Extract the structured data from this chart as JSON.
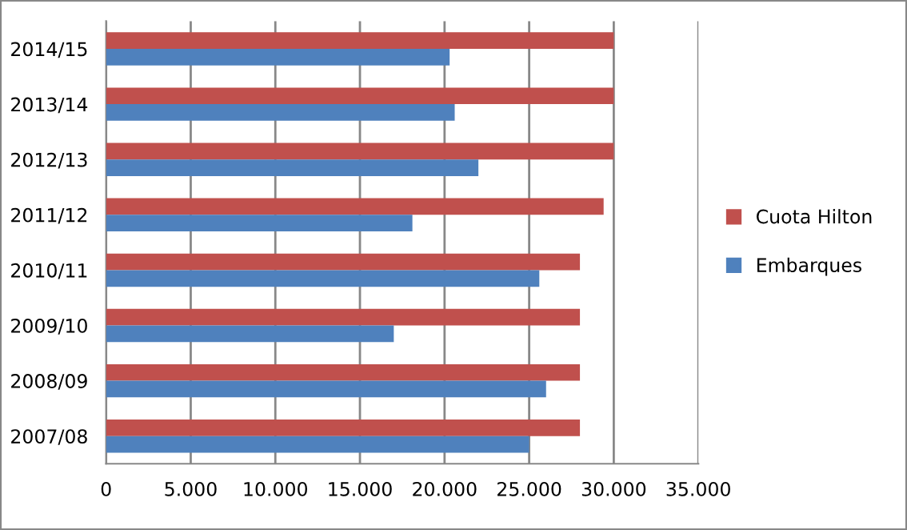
{
  "chart_data": {
    "type": "bar",
    "orientation": "horizontal",
    "categories": [
      "2014/15",
      "2013/14",
      "2012/13",
      "2011/12",
      "2010/11",
      "2009/10",
      "2008/09",
      "2007/08"
    ],
    "series": [
      {
        "name": "Cuota Hilton",
        "color": "#c0504d",
        "values": [
          30000,
          30000,
          30000,
          29400,
          28000,
          28000,
          28000,
          28000
        ]
      },
      {
        "name": "Embarques",
        "color": "#4f81bd",
        "values": [
          20300,
          20600,
          22000,
          18100,
          25600,
          17000,
          26000,
          25000
        ]
      }
    ],
    "xlim": [
      0,
      35000
    ],
    "xticks": [
      {
        "value": 0,
        "label": "0"
      },
      {
        "value": 5000,
        "label": "5.000"
      },
      {
        "value": 10000,
        "label": "10.000"
      },
      {
        "value": 15000,
        "label": "15.000"
      },
      {
        "value": 20000,
        "label": "20.000"
      },
      {
        "value": 25000,
        "label": "25.000"
      },
      {
        "value": 30000,
        "label": "30.000"
      },
      {
        "value": 35000,
        "label": "35.000"
      }
    ],
    "grid": "x",
    "legend": "right"
  }
}
